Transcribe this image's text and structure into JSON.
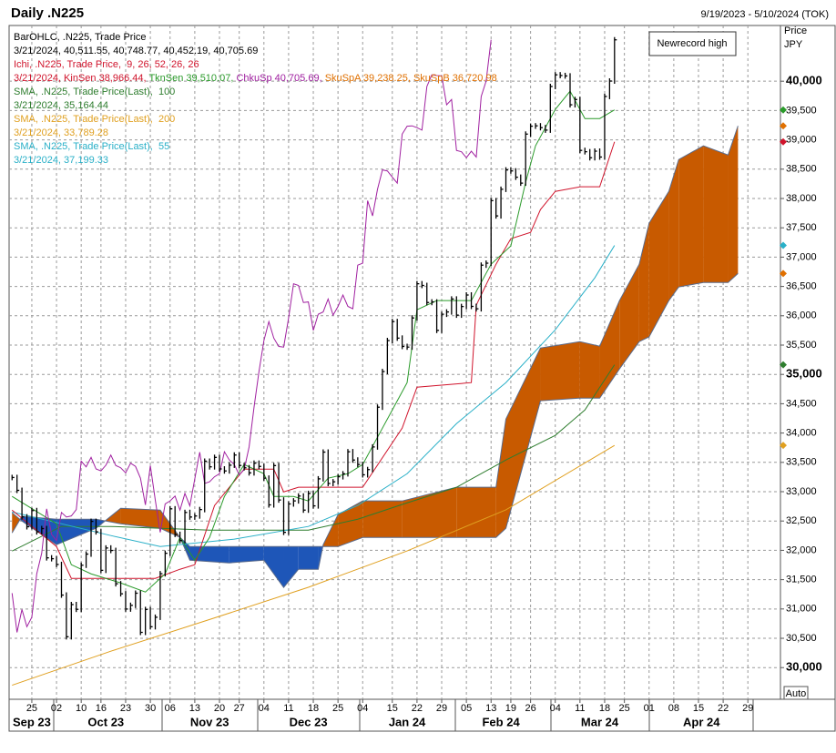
{
  "chart_data": {
    "type": "ohlc_ichimoku",
    "title": "Daily .N225",
    "date_range": "9/19/2023 - 5/10/2024 (TOK)",
    "axis_title": "Price",
    "axis_unit": "JPY",
    "scale_mode": "Auto",
    "annotation": "Newrecord high",
    "legend": [
      [
        {
          "text": "BarOHLC, .N225, Trade Price",
          "color": "#000000"
        }
      ],
      [
        {
          "text": "3/21/2024, 40,511.55, 40,748.77, 40,452.19, 40,705.69",
          "color": "#000000"
        }
      ],
      [
        {
          "text": "Ichi, .N225, Trade Price,  9, 26, 52, 26, 26",
          "color": "#d0142c"
        }
      ],
      [
        {
          "text": "3/21/2024, KinSen 38,966.44, ",
          "color": "#d0142c"
        },
        {
          "text": "TknSen 39,510.07, ",
          "color": "#2a9a2a"
        },
        {
          "text": "ChkuSp 40,705.69, ",
          "color": "#a020a0"
        },
        {
          "text": "SkuSpA 39,238.25, ",
          "color": "#e07000"
        },
        {
          "text": "SkuSpB 36,720.98",
          "color": "#e07000"
        }
      ],
      [
        {
          "text": "SMA, .N225, Trade Price(Last),  100",
          "color": "#2e7d2e"
        }
      ],
      [
        {
          "text": "3/21/2024, 35,164.44",
          "color": "#2e7d2e"
        }
      ],
      [
        {
          "text": "SMA, .N225, Trade Price(Last),  200",
          "color": "#e0a020"
        }
      ],
      [
        {
          "text": "3/21/2024, 33,789.28",
          "color": "#e0a020"
        }
      ],
      [
        {
          "text": "SMA, .N225, Trade Price(Last),  55",
          "color": "#2ab0c8"
        }
      ],
      [
        {
          "text": "3/21/2024, 37,199.33",
          "color": "#2ab0c8"
        }
      ]
    ],
    "values": [
      33242,
      33023,
      32571,
      32402,
      32678,
      32315,
      32371,
      31872,
      31857,
      31759,
      31237,
      30526,
      31075,
      30994,
      31746,
      31936,
      32494,
      32315,
      31659,
      32040,
      31998,
      31430,
      31259,
      30999,
      31062,
      31269,
      30601,
      30991,
      30697,
      30859,
      31601,
      31950,
      32708,
      32272,
      32166,
      32646,
      32568,
      32586,
      32695,
      33520,
      33424,
      33585,
      33388,
      33354,
      33452,
      33625,
      33447,
      33408,
      33321,
      33486,
      33431,
      33231,
      32775,
      33445,
      32858,
      32307,
      32791,
      32843,
      32926,
      32686,
      32970,
      32758,
      33219,
      33675,
      33140,
      33169,
      33255,
      33305,
      33681,
      33540,
      33464,
      33288,
      33377,
      33763,
      34441,
      35049,
      35577,
      35901,
      35619,
      35477,
      35466,
      35963,
      36546,
      36517,
      36226,
      36236,
      35751,
      36026,
      36065,
      36286,
      36011,
      36158,
      36354,
      36160,
      36119,
      36863,
      36897,
      37963,
      37703,
      38157,
      38487,
      38470,
      38363,
      38262,
      39098,
      39233,
      39239,
      39208,
      39166,
      39910,
      40109,
      40097,
      40090,
      39598,
      39688,
      38820,
      38797,
      38695,
      38807,
      38707,
      39740,
      40003,
      40705.69
    ],
    "bar_color": "#000000",
    "lagging_span_shift": 25,
    "lagging_span_color": "#a020a0",
    "lines": {
      "sma200": {
        "color": "#e0a020",
        "x": [
          0,
          20,
          40,
          60,
          80,
          100,
          122
        ],
        "values": [
          29700,
          30280,
          30820,
          31370,
          31990,
          32690,
          33789.28
        ]
      },
      "sma100": {
        "color": "#2e7d2e",
        "x": [
          0,
          10,
          20,
          40,
          60,
          70,
          80,
          90,
          100,
          110,
          116,
          122
        ],
        "values": [
          31988,
          32407,
          32407,
          32345,
          32345,
          32531,
          32810,
          33075,
          33540,
          33960,
          34394,
          35164.44
        ]
      },
      "sma55": {
        "color": "#2ab0c8",
        "x": [
          0,
          20,
          30,
          45,
          60,
          70,
          80,
          90,
          100,
          110,
          118,
          122
        ],
        "values": [
          32655,
          32252,
          32065,
          32190,
          32407,
          32764,
          33307,
          34161,
          34860,
          35761,
          36646,
          37199.33
        ]
      },
      "kijun": {
        "color": "#d0142c",
        "x": [
          0,
          9,
          12,
          29,
          34,
          37,
          41,
          47,
          53,
          55,
          58,
          71,
          79,
          82,
          93,
          94,
          98,
          101,
          105,
          107,
          110,
          115,
          119,
          122
        ],
        "values": [
          32686,
          32065,
          31522,
          31522,
          31677,
          31755,
          32764,
          33385,
          33385,
          32997,
          33075,
          33075,
          34084,
          34782,
          34860,
          36180,
          36879,
          37314,
          37422,
          37811,
          38121,
          38199,
          38199,
          38966.44
        ]
      },
      "tenkan": {
        "color": "#2a9a2a",
        "x": [
          0,
          9,
          12,
          16,
          22,
          27,
          31,
          34,
          37,
          40,
          43,
          47,
          51,
          53,
          57,
          60,
          64,
          68,
          71,
          75,
          77,
          80,
          82,
          86,
          90,
          93,
          97,
          101,
          104,
          106,
          110,
          113,
          116,
          119,
          122
        ],
        "values": [
          32919,
          32453,
          31755,
          31599,
          31444,
          31289,
          31599,
          32221,
          31832,
          32221,
          32919,
          33463,
          33307,
          32919,
          32919,
          32842,
          33230,
          33307,
          33463,
          34084,
          34394,
          34860,
          36102,
          36258,
          36258,
          36258,
          36879,
          37190,
          38276,
          38898,
          39519,
          39829,
          39363,
          39363,
          39510.07
        ]
      }
    },
    "cloud": {
      "up_color": "#c85a00",
      "down_color": "#1e56b8",
      "edge_color": "#5a6a8a",
      "x": [
        0,
        2,
        9,
        17,
        22,
        30,
        34,
        36,
        44,
        51,
        55,
        58,
        62,
        63,
        66,
        71,
        79,
        90,
        98,
        100,
        107,
        115,
        119,
        123,
        127,
        129,
        133,
        135,
        140,
        145,
        147
      ],
      "span_a": [
        32640,
        32500,
        32096,
        32376,
        32717,
        32686,
        32221,
        31832,
        31786,
        31832,
        31367,
        31677,
        31677,
        32096,
        32609,
        32842,
        32842,
        33075,
        33075,
        34239,
        35450,
        35559,
        35481,
        36258,
        36879,
        37578,
        38121,
        38665,
        38898,
        38742,
        39238.25
      ],
      "span_b": [
        32298,
        32580,
        32531,
        32531,
        32453,
        32376,
        32221,
        32065,
        32065,
        32065,
        32065,
        32065,
        32065,
        32065,
        32065,
        32220,
        32220,
        32220,
        32220,
        32376,
        34550,
        34596,
        34596,
        35093,
        35559,
        35640,
        36258,
        36491,
        36568,
        36568,
        36720.98
      ]
    },
    "ylim": [
      29460,
      40950
    ],
    "yticks": [
      {
        "value": 30000,
        "label": "30,000"
      },
      {
        "value": 30500,
        "label": "30,500"
      },
      {
        "value": 31000,
        "label": "31,000"
      },
      {
        "value": 31500,
        "label": "31,500"
      },
      {
        "value": 32000,
        "label": "32,000"
      },
      {
        "value": 32500,
        "label": "32,500"
      },
      {
        "value": 33000,
        "label": "33,000"
      },
      {
        "value": 33500,
        "label": "33,500"
      },
      {
        "value": 34000,
        "label": "34,000"
      },
      {
        "value": 34500,
        "label": "34,500"
      },
      {
        "value": 35000,
        "label": "35,000"
      },
      {
        "value": 35500,
        "label": "35,500"
      },
      {
        "value": 36000,
        "label": "36,000"
      },
      {
        "value": 36500,
        "label": "36,500"
      },
      {
        "value": 37000,
        "label": "37,000"
      },
      {
        "value": 37500,
        "label": "37,500"
      },
      {
        "value": 38000,
        "label": "38,000"
      },
      {
        "value": 38500,
        "label": "38,500"
      },
      {
        "value": 39000,
        "label": "39,000"
      },
      {
        "value": 39500,
        "label": "39,500"
      },
      {
        "value": 40000,
        "label": "40,000"
      }
    ],
    "xlim": [
      -0.6,
      155.6
    ],
    "xticks": [
      {
        "value": 4,
        "label": "25"
      },
      {
        "value": 9,
        "label": "02"
      },
      {
        "value": 14,
        "label": "10"
      },
      {
        "value": 18,
        "label": "16"
      },
      {
        "value": 23,
        "label": "23"
      },
      {
        "value": 28,
        "label": "30"
      },
      {
        "value": 32,
        "label": "06"
      },
      {
        "value": 37,
        "label": "13"
      },
      {
        "value": 42,
        "label": "20"
      },
      {
        "value": 46,
        "label": "27"
      },
      {
        "value": 51,
        "label": "04"
      },
      {
        "value": 56,
        "label": "11"
      },
      {
        "value": 61,
        "label": "18"
      },
      {
        "value": 66,
        "label": "25"
      },
      {
        "value": 71,
        "label": "04"
      },
      {
        "value": 77,
        "label": "15"
      },
      {
        "value": 82,
        "label": "22"
      },
      {
        "value": 87,
        "label": "29"
      },
      {
        "value": 92,
        "label": "05"
      },
      {
        "value": 97,
        "label": "13"
      },
      {
        "value": 101,
        "label": "19"
      },
      {
        "value": 105,
        "label": "26"
      },
      {
        "value": 110,
        "label": "04"
      },
      {
        "value": 115,
        "label": "11"
      },
      {
        "value": 120,
        "label": "18"
      },
      {
        "value": 124,
        "label": "25"
      },
      {
        "value": 129,
        "label": "01"
      },
      {
        "value": 134,
        "label": "08"
      },
      {
        "value": 139,
        "label": "15"
      },
      {
        "value": 144,
        "label": "22"
      },
      {
        "value": 149,
        "label": "29"
      }
    ],
    "months": [
      {
        "value": 4,
        "label": "Sep 23"
      },
      {
        "value": 19,
        "label": "Oct 23"
      },
      {
        "value": 40,
        "label": "Nov 23"
      },
      {
        "value": 60,
        "label": "Dec 23"
      },
      {
        "value": 80,
        "label": "Jan 24"
      },
      {
        "value": 99,
        "label": "Feb 24"
      },
      {
        "value": 119,
        "label": "Mar 24"
      },
      {
        "value": 139.6,
        "label": "Apr 24"
      }
    ],
    "grid": true
  }
}
